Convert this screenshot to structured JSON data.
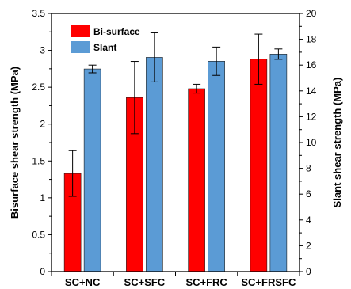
{
  "chart_data": {
    "type": "bar",
    "categories": [
      "SC+NC",
      "SC+SFC",
      "SC+FRC",
      "SC+FRSFC"
    ],
    "series": [
      {
        "name": "Bi-surface",
        "axis": "left",
        "color": "#ff0000",
        "values": [
          1.33,
          2.36,
          2.48,
          2.88
        ],
        "error": [
          0.31,
          0.49,
          0.06,
          0.34
        ]
      },
      {
        "name": "Slant",
        "axis": "right",
        "color": "#5b9bd5",
        "values": [
          15.7,
          16.6,
          16.3,
          16.85
        ],
        "error": [
          0.3,
          1.9,
          1.1,
          0.4
        ]
      }
    ],
    "ylabel": "Bisurface shear strength (MPa)",
    "ylabel_right": "Slant shear strength (MPa)",
    "ylim": [
      0,
      3.5
    ],
    "ylim_right": [
      0,
      20
    ],
    "yticks": [
      "0",
      "0.5",
      "1",
      "1.5",
      "2",
      "2.5",
      "3",
      "3.5"
    ],
    "yticks_right": [
      "0",
      "2",
      "4",
      "6",
      "8",
      "10",
      "12",
      "14",
      "16",
      "18",
      "20"
    ],
    "legend_position": "top-left",
    "grid": false
  }
}
